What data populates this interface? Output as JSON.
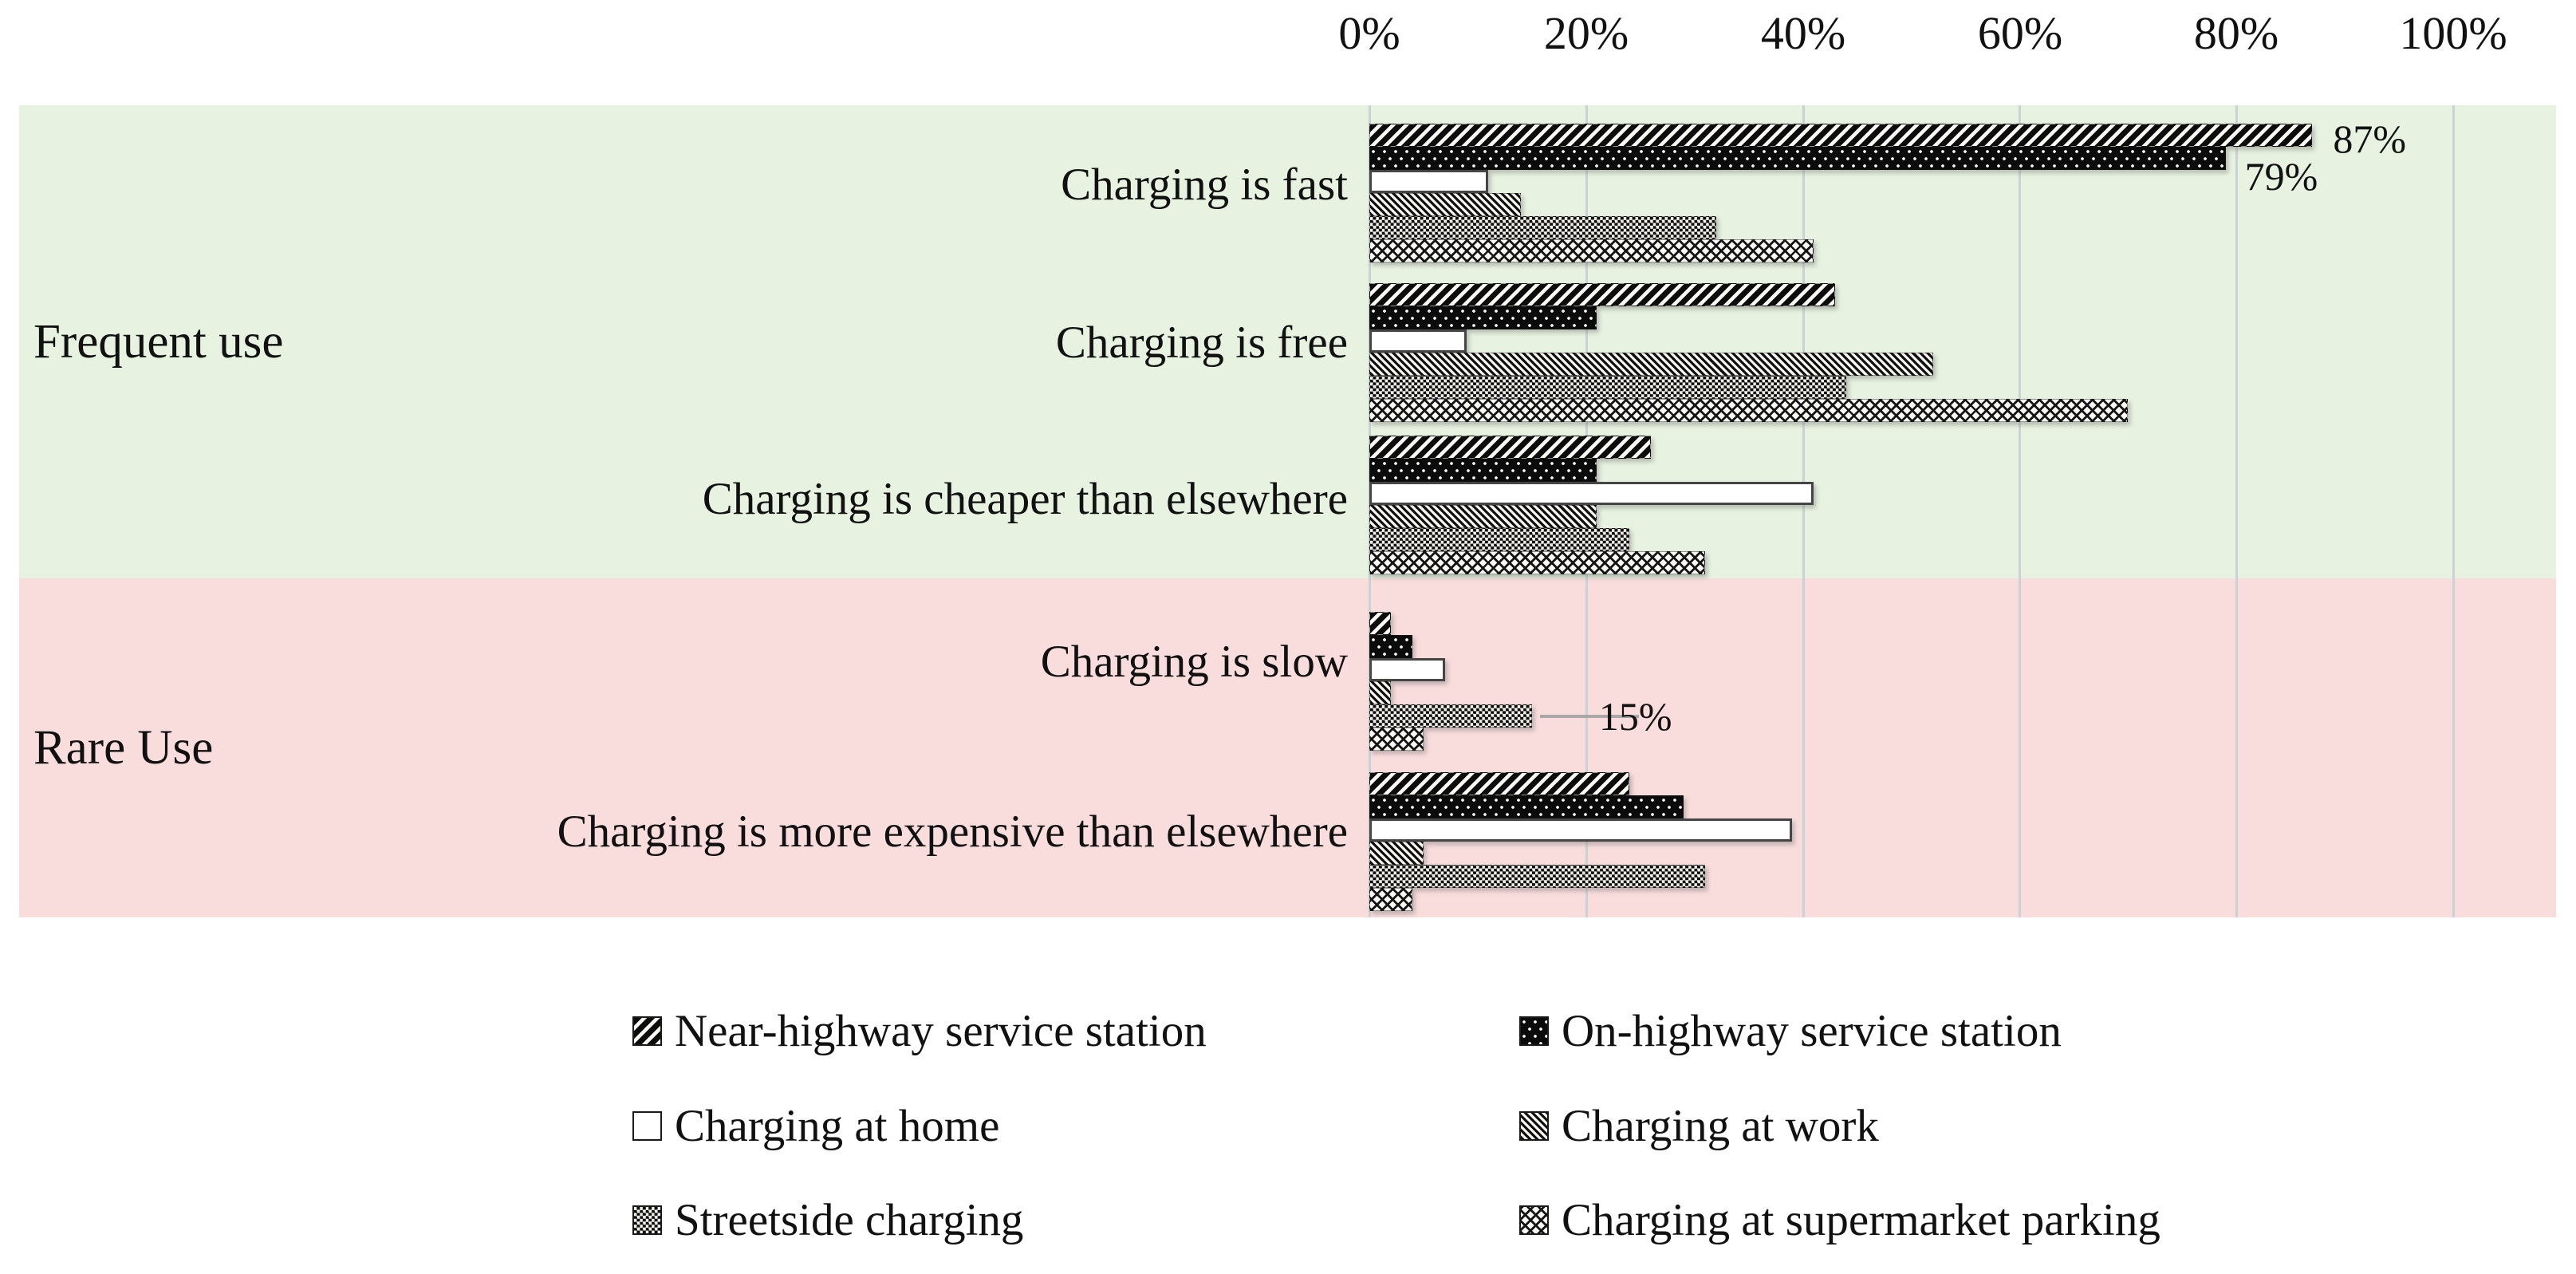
{
  "colors": {
    "band_frequent_use": "#e7f2e0",
    "band_rare_use": "#f9dcdc",
    "gridline": "#c9d2d4",
    "leader_line": "#a8a8a8",
    "text": "#111111"
  },
  "chart_data": {
    "type": "bar",
    "orientation": "horizontal",
    "title": "",
    "grid": true,
    "legend_position": "bottom",
    "x_axis": {
      "min": 0,
      "max": 100,
      "unit": "percent",
      "ticks": [
        "0%",
        "20%",
        "40%",
        "60%",
        "80%",
        "100%"
      ]
    },
    "group_bands": [
      {
        "label": "Frequent use",
        "bg": "#e7f2e0",
        "category_indexes": [
          0,
          1,
          2
        ]
      },
      {
        "label": "Rare Use",
        "bg": "#f9dcdc",
        "category_indexes": [
          3,
          4
        ]
      }
    ],
    "categories": [
      "Charging is fast",
      "Charging is free",
      "Charging is cheaper than elsewhere",
      "Charging is slow",
      "Charging is more expensive than elsewhere"
    ],
    "series": [
      {
        "name": "Near-highway service station",
        "pattern": "diagonal-stripe-bold",
        "values": [
          87,
          43,
          26,
          2,
          24
        ]
      },
      {
        "name": "On-highway service station",
        "pattern": "black-white-dots",
        "values": [
          79,
          21,
          21,
          4,
          29
        ]
      },
      {
        "name": "Charging at home",
        "pattern": "plain-white",
        "values": [
          11,
          9,
          41,
          7,
          39
        ]
      },
      {
        "name": "Charging at work",
        "pattern": "diagonal-stripe-thin",
        "values": [
          14,
          52,
          21,
          2,
          5
        ]
      },
      {
        "name": "Streetside charging",
        "pattern": "checkerboard",
        "values": [
          32,
          44,
          24,
          15,
          31
        ]
      },
      {
        "name": "Charging at supermarket parking",
        "pattern": "diamond-lattice",
        "values": [
          41,
          70,
          31,
          5,
          4
        ]
      }
    ],
    "data_labels": [
      {
        "series": 0,
        "category": 0,
        "text": "87%",
        "leader_line": false
      },
      {
        "series": 1,
        "category": 0,
        "text": "79%",
        "leader_line": false
      },
      {
        "series": 4,
        "category": 3,
        "text": "15%",
        "leader_line": true
      }
    ]
  }
}
